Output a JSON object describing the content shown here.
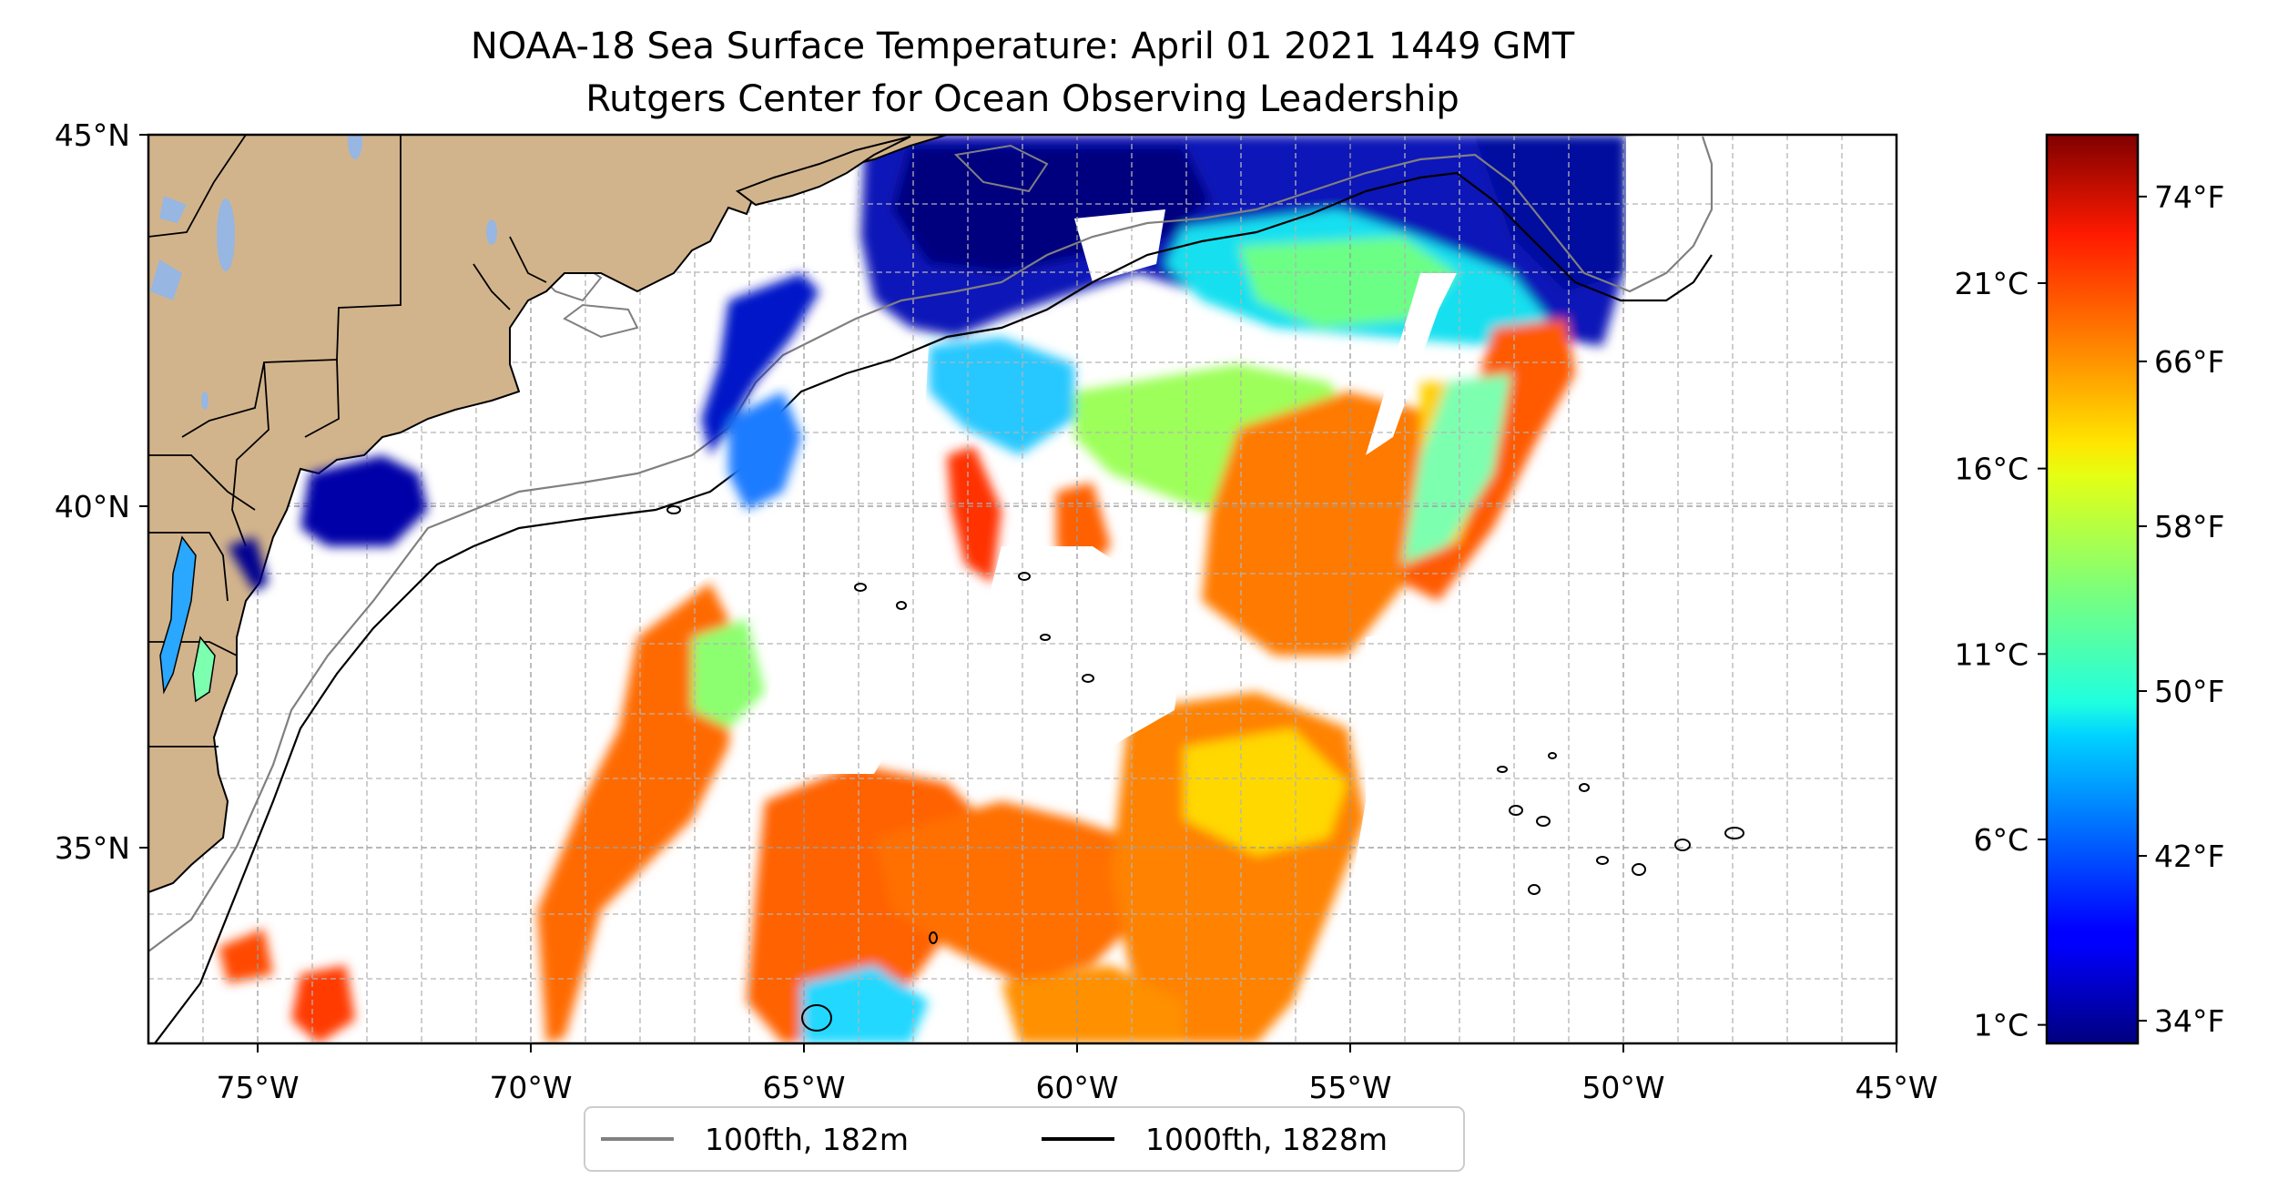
{
  "title": {
    "line1": "NOAA-18 Sea Surface Temperature: April 01 2021 1449 GMT",
    "line2": "Rutgers Center for Ocean Observing Leadership"
  },
  "map": {
    "lon_range": [
      -77,
      -45
    ],
    "lat_range": [
      32.5,
      45
    ],
    "x_ticks": [
      {
        "value": -75,
        "label": "75°W"
      },
      {
        "value": -70,
        "label": "70°W"
      },
      {
        "value": -65,
        "label": "65°W"
      },
      {
        "value": -60,
        "label": "60°W"
      },
      {
        "value": -55,
        "label": "55°W"
      },
      {
        "value": -50,
        "label": "50°W"
      },
      {
        "value": -45,
        "label": "45°W"
      }
    ],
    "y_ticks": [
      {
        "value": 45,
        "label": "45°N"
      },
      {
        "value": 40,
        "label": "40°N"
      },
      {
        "value": 35,
        "label": "35°N"
      }
    ],
    "gridlines": true,
    "colors": {
      "land": "#d2b48c",
      "lakes": "#97b6e1",
      "grid": "#b0b0b0",
      "isobath_100": "#808080",
      "isobath_1000": "#000000"
    }
  },
  "legend": {
    "placement": "bottom-center",
    "items": [
      {
        "label": "100fth, 182m",
        "color": "#808080"
      },
      {
        "label": "1000fth, 1828m",
        "color": "#000000"
      }
    ]
  },
  "colorbar": {
    "colormap": "jet",
    "range_c": [
      0.5,
      25
    ],
    "celsius_ticks": [
      {
        "value": 1,
        "label": "1°C"
      },
      {
        "value": 6,
        "label": "6°C"
      },
      {
        "value": 11,
        "label": "11°C"
      },
      {
        "value": 16,
        "label": "16°C"
      },
      {
        "value": 21,
        "label": "21°C"
      }
    ],
    "fahrenheit_ticks": [
      {
        "value_f": 34,
        "label": "34°F"
      },
      {
        "value_f": 42,
        "label": "42°F"
      },
      {
        "value_f": 50,
        "label": "50°F"
      },
      {
        "value_f": 58,
        "label": "58°F"
      },
      {
        "value_f": 66,
        "label": "66°F"
      },
      {
        "value_f": 74,
        "label": "74°F"
      }
    ]
  }
}
